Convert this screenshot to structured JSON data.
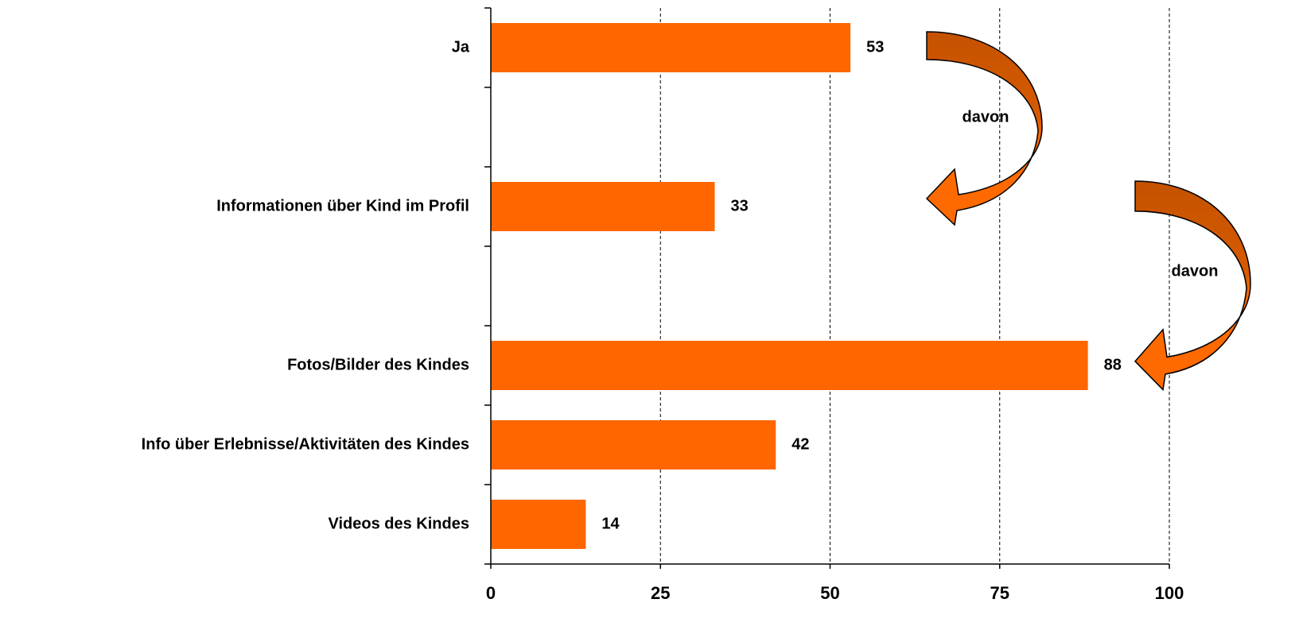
{
  "chart_data": {
    "type": "bar",
    "orientation": "horizontal",
    "categories": [
      "Ja",
      null,
      "Informationen über Kind im Profil",
      null,
      "Fotos/Bilder des Kindes",
      "Info über Erlebnisse/Aktivitäten des Kindes",
      "Videos des Kindes"
    ],
    "values": [
      53,
      null,
      33,
      null,
      88,
      42,
      14
    ],
    "color": "#ff6600",
    "xlim": [
      0,
      100
    ],
    "xticks": [
      0,
      25,
      50,
      75,
      100
    ],
    "grid": true,
    "annotations": [
      "davon",
      "davon"
    ]
  }
}
